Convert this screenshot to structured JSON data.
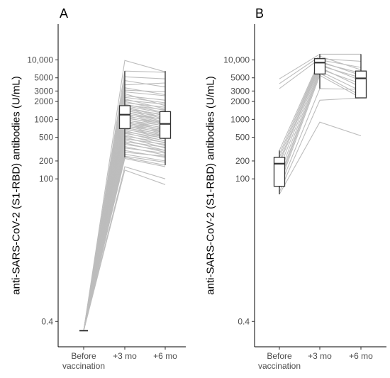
{
  "chart_data": [
    {
      "panel_label": "A",
      "type": "box-with-paired-lines",
      "ylabel": "anti-SARS-CoV-2 (S1-RBD) antibodies (U/mL)",
      "yscale": "log",
      "ylim": [
        0.15,
        40000
      ],
      "yticks": [
        {
          "value": 0.4,
          "label": "0.4"
        },
        {
          "value": 100,
          "label": "100"
        },
        {
          "value": 200,
          "label": "200"
        },
        {
          "value": 500,
          "label": "500"
        },
        {
          "value": 1000,
          "label": "1000"
        },
        {
          "value": 2000,
          "label": "2000"
        },
        {
          "value": 3000,
          "label": "3000"
        },
        {
          "value": 5000,
          "label": "5000"
        },
        {
          "value": 10000,
          "label": "10,000"
        }
      ],
      "categories": [
        {
          "label": "Before",
          "sublabel": "vaccination"
        },
        {
          "label": "+3 mo",
          "sublabel": ""
        },
        {
          "label": "+6 mo",
          "sublabel": ""
        }
      ],
      "line_color": "#bdbdbd",
      "box_color": "#333333",
      "boxes": [
        {
          "category": 0,
          "q1": 0.28,
          "median": 0.28,
          "q3": 0.28,
          "whisker_low": 0.28,
          "whisker_high": 0.28
        },
        {
          "category": 1,
          "q1": 700,
          "median": 1200,
          "q3": 1700,
          "whisker_low": 230,
          "whisker_high": 6500
        },
        {
          "category": 2,
          "q1": 480,
          "median": 840,
          "q3": 1350,
          "whisker_low": 170,
          "whisker_high": 6500
        }
      ],
      "subjects": [
        [
          0.28,
          9800,
          6300
        ],
        [
          0.28,
          6500,
          6200
        ],
        [
          0.28,
          5200,
          4800
        ],
        [
          0.28,
          4500,
          3500
        ],
        [
          0.28,
          3800,
          4100
        ],
        [
          0.28,
          3400,
          2600
        ],
        [
          0.28,
          3100,
          2900
        ],
        [
          0.28,
          2900,
          2500
        ],
        [
          0.28,
          2700,
          1700
        ],
        [
          0.28,
          2500,
          2100
        ],
        [
          0.28,
          2350,
          1900
        ],
        [
          0.28,
          2200,
          1500
        ],
        [
          0.28,
          2100,
          1800
        ],
        [
          0.28,
          2000,
          1400
        ],
        [
          0.28,
          1900,
          1600
        ],
        [
          0.28,
          1800,
          1300
        ],
        [
          0.28,
          1750,
          1450
        ],
        [
          0.28,
          1700,
          1250
        ],
        [
          0.28,
          1650,
          1050
        ],
        [
          0.28,
          1600,
          1150
        ],
        [
          0.28,
          1550,
          1000
        ],
        [
          0.28,
          1500,
          1200
        ],
        [
          0.28,
          1450,
          950
        ],
        [
          0.28,
          1400,
          1100
        ],
        [
          0.28,
          1350,
          900
        ],
        [
          0.28,
          1300,
          980
        ],
        [
          0.28,
          1250,
          870
        ],
        [
          0.28,
          1200,
          1000
        ],
        [
          0.28,
          1180,
          800
        ],
        [
          0.28,
          1150,
          860
        ],
        [
          0.28,
          1100,
          760
        ],
        [
          0.28,
          1050,
          840
        ],
        [
          0.28,
          1000,
          700
        ],
        [
          0.28,
          980,
          780
        ],
        [
          0.28,
          950,
          650
        ],
        [
          0.28,
          920,
          720
        ],
        [
          0.28,
          900,
          600
        ],
        [
          0.28,
          870,
          680
        ],
        [
          0.28,
          850,
          560
        ],
        [
          0.28,
          820,
          640
        ],
        [
          0.28,
          800,
          520
        ],
        [
          0.28,
          780,
          600
        ],
        [
          0.28,
          750,
          490
        ],
        [
          0.28,
          720,
          560
        ],
        [
          0.28,
          700,
          470
        ],
        [
          0.28,
          680,
          520
        ],
        [
          0.28,
          650,
          430
        ],
        [
          0.28,
          620,
          480
        ],
        [
          0.28,
          600,
          400
        ],
        [
          0.28,
          580,
          440
        ],
        [
          0.28,
          550,
          360
        ],
        [
          0.28,
          520,
          410
        ],
        [
          0.28,
          500,
          330
        ],
        [
          0.28,
          470,
          380
        ],
        [
          0.28,
          450,
          300
        ],
        [
          0.28,
          420,
          340
        ],
        [
          0.28,
          400,
          280
        ],
        [
          0.28,
          380,
          300
        ],
        [
          0.28,
          350,
          250
        ],
        [
          0.28,
          330,
          270
        ],
        [
          0.28,
          300,
          230
        ],
        [
          0.28,
          280,
          240
        ],
        [
          0.28,
          260,
          200
        ],
        [
          0.28,
          240,
          190
        ],
        [
          0.28,
          230,
          170
        ],
        [
          0.28,
          220,
          160
        ],
        [
          0.28,
          160,
          100
        ],
        [
          0.28,
          140,
          80
        ]
      ]
    },
    {
      "panel_label": "B",
      "type": "box-with-paired-lines",
      "ylabel": "anti-SARS-CoV-2 (S1-RBD) antibodies (U/mL)",
      "yscale": "log",
      "ylim": [
        0.15,
        40000
      ],
      "yticks": [
        {
          "value": 0.4,
          "label": "0.4"
        },
        {
          "value": 100,
          "label": "100"
        },
        {
          "value": 200,
          "label": "200"
        },
        {
          "value": 500,
          "label": "500"
        },
        {
          "value": 1000,
          "label": "1000"
        },
        {
          "value": 2000,
          "label": "2000"
        },
        {
          "value": 3000,
          "label": "3000"
        },
        {
          "value": 5000,
          "label": "5000"
        },
        {
          "value": 10000,
          "label": "10,000"
        }
      ],
      "categories": [
        {
          "label": "Before",
          "sublabel": "vaccination"
        },
        {
          "label": "+3 mo",
          "sublabel": ""
        },
        {
          "label": "+6 mo",
          "sublabel": ""
        }
      ],
      "line_color": "#bdbdbd",
      "box_color": "#333333",
      "boxes": [
        {
          "category": 0,
          "q1": 75,
          "median": 180,
          "q3": 230,
          "whisker_low": 55,
          "whisker_high": 300
        },
        {
          "category": 1,
          "q1": 5800,
          "median": 9000,
          "q3": 10500,
          "whisker_low": 3300,
          "whisker_high": 12500
        },
        {
          "category": 2,
          "q1": 2300,
          "median": 4900,
          "q3": 6500,
          "whisker_low": 2300,
          "whisker_high": 12500
        }
      ],
      "subjects": [
        [
          4800,
          12500,
          12500
        ],
        [
          4000,
          11500,
          6800
        ],
        [
          3300,
          10500,
          9500
        ],
        [
          300,
          10000,
          7500
        ],
        [
          260,
          9500,
          5500
        ],
        [
          230,
          9000,
          6000
        ],
        [
          200,
          8500,
          4500
        ],
        [
          180,
          8000,
          5000
        ],
        [
          150,
          7500,
          3500
        ],
        [
          120,
          7000,
          4000
        ],
        [
          100,
          6500,
          3000
        ],
        [
          90,
          6000,
          2500
        ],
        [
          80,
          5500,
          2300
        ],
        [
          70,
          3300,
          3200
        ],
        [
          60,
          2100,
          2300
        ],
        [
          55,
          900,
          530
        ]
      ]
    }
  ]
}
